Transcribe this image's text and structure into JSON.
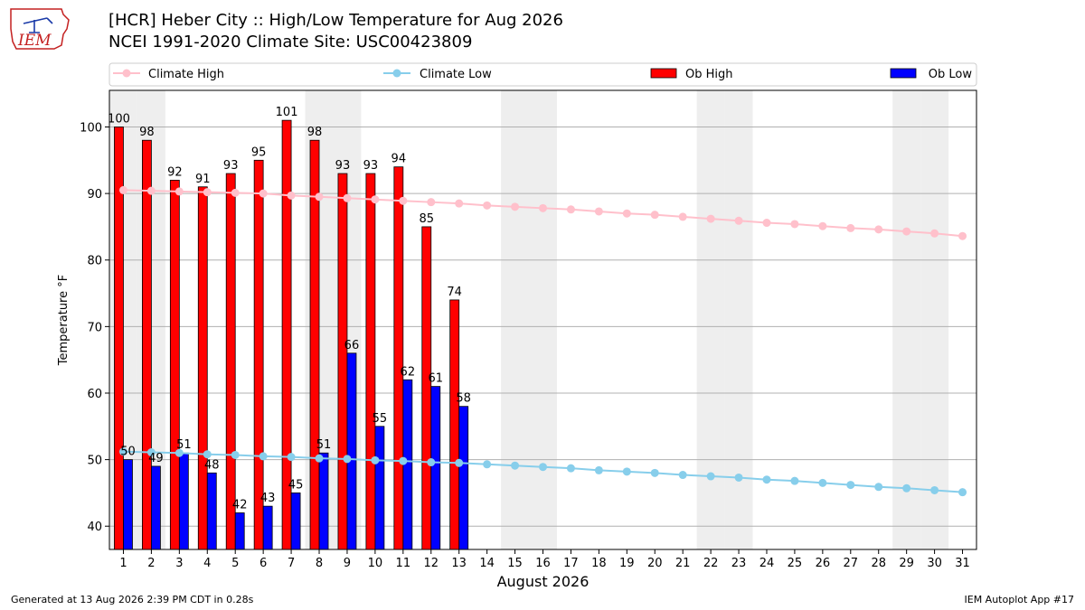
{
  "header": {
    "logo_text": "IEM",
    "title_line1": "[HCR] Heber City :: High/Low Temperature for Aug 2026",
    "title_line2": "NCEI 1991-2020 Climate Site: USC00423809"
  },
  "footer": {
    "left": "Generated at 13 Aug 2026 2:39 PM CDT in 0.28s",
    "right": "IEM Autoplot App #17"
  },
  "colors": {
    "ob_high": "#ff0000",
    "ob_low": "#0000ff",
    "climate_high": "#ffc0cb",
    "climate_low": "#87ceeb",
    "weekend_shade": "#eeeeee",
    "grid": "#b0b0b0"
  },
  "chart_data": {
    "type": "bar",
    "xlabel": "August 2026",
    "ylabel": "Temperature °F",
    "ylim": [
      36.5,
      105.5
    ],
    "yticks": [
      40,
      50,
      60,
      70,
      80,
      90,
      100
    ],
    "grid": "horizontal",
    "legend_position": "top",
    "days": [
      1,
      2,
      3,
      4,
      5,
      6,
      7,
      8,
      9,
      10,
      11,
      12,
      13,
      14,
      15,
      16,
      17,
      18,
      19,
      20,
      21,
      22,
      23,
      24,
      25,
      26,
      27,
      28,
      29,
      30,
      31
    ],
    "weekend_days": [
      1,
      2,
      8,
      9,
      15,
      16,
      22,
      23,
      29,
      30
    ],
    "series": [
      {
        "name": "Climate High",
        "kind": "line",
        "values": [
          90.5,
          90.4,
          90.3,
          90.2,
          90.1,
          90.0,
          89.7,
          89.5,
          89.3,
          89.1,
          88.9,
          88.7,
          88.5,
          88.2,
          88.0,
          87.8,
          87.6,
          87.3,
          87.0,
          86.8,
          86.5,
          86.2,
          85.9,
          85.6,
          85.4,
          85.1,
          84.8,
          84.6,
          84.3,
          84.0,
          83.6
        ]
      },
      {
        "name": "Climate Low",
        "kind": "line",
        "values": [
          51.2,
          51.1,
          51.0,
          50.8,
          50.7,
          50.5,
          50.4,
          50.2,
          50.1,
          49.9,
          49.8,
          49.6,
          49.5,
          49.3,
          49.1,
          48.9,
          48.7,
          48.4,
          48.2,
          48.0,
          47.7,
          47.5,
          47.3,
          47.0,
          46.8,
          46.5,
          46.2,
          45.9,
          45.7,
          45.4,
          45.1
        ]
      },
      {
        "name": "Ob High",
        "kind": "bar",
        "values": [
          100,
          98,
          92,
          91,
          93,
          95,
          101,
          98,
          93,
          93,
          94,
          85,
          74
        ],
        "labels": [
          "100",
          "98",
          "92",
          "91",
          "93",
          "95",
          "101",
          "98",
          "93",
          "93",
          "94",
          "85",
          "74"
        ]
      },
      {
        "name": "Ob Low",
        "kind": "bar",
        "values": [
          50,
          49,
          51,
          48,
          42,
          43,
          45,
          51,
          66,
          55,
          62,
          61,
          58
        ],
        "labels": [
          "50",
          "49",
          "51",
          "48",
          "42",
          "43",
          "45",
          "51",
          "66",
          "55",
          "62",
          "61",
          "58"
        ]
      }
    ]
  }
}
